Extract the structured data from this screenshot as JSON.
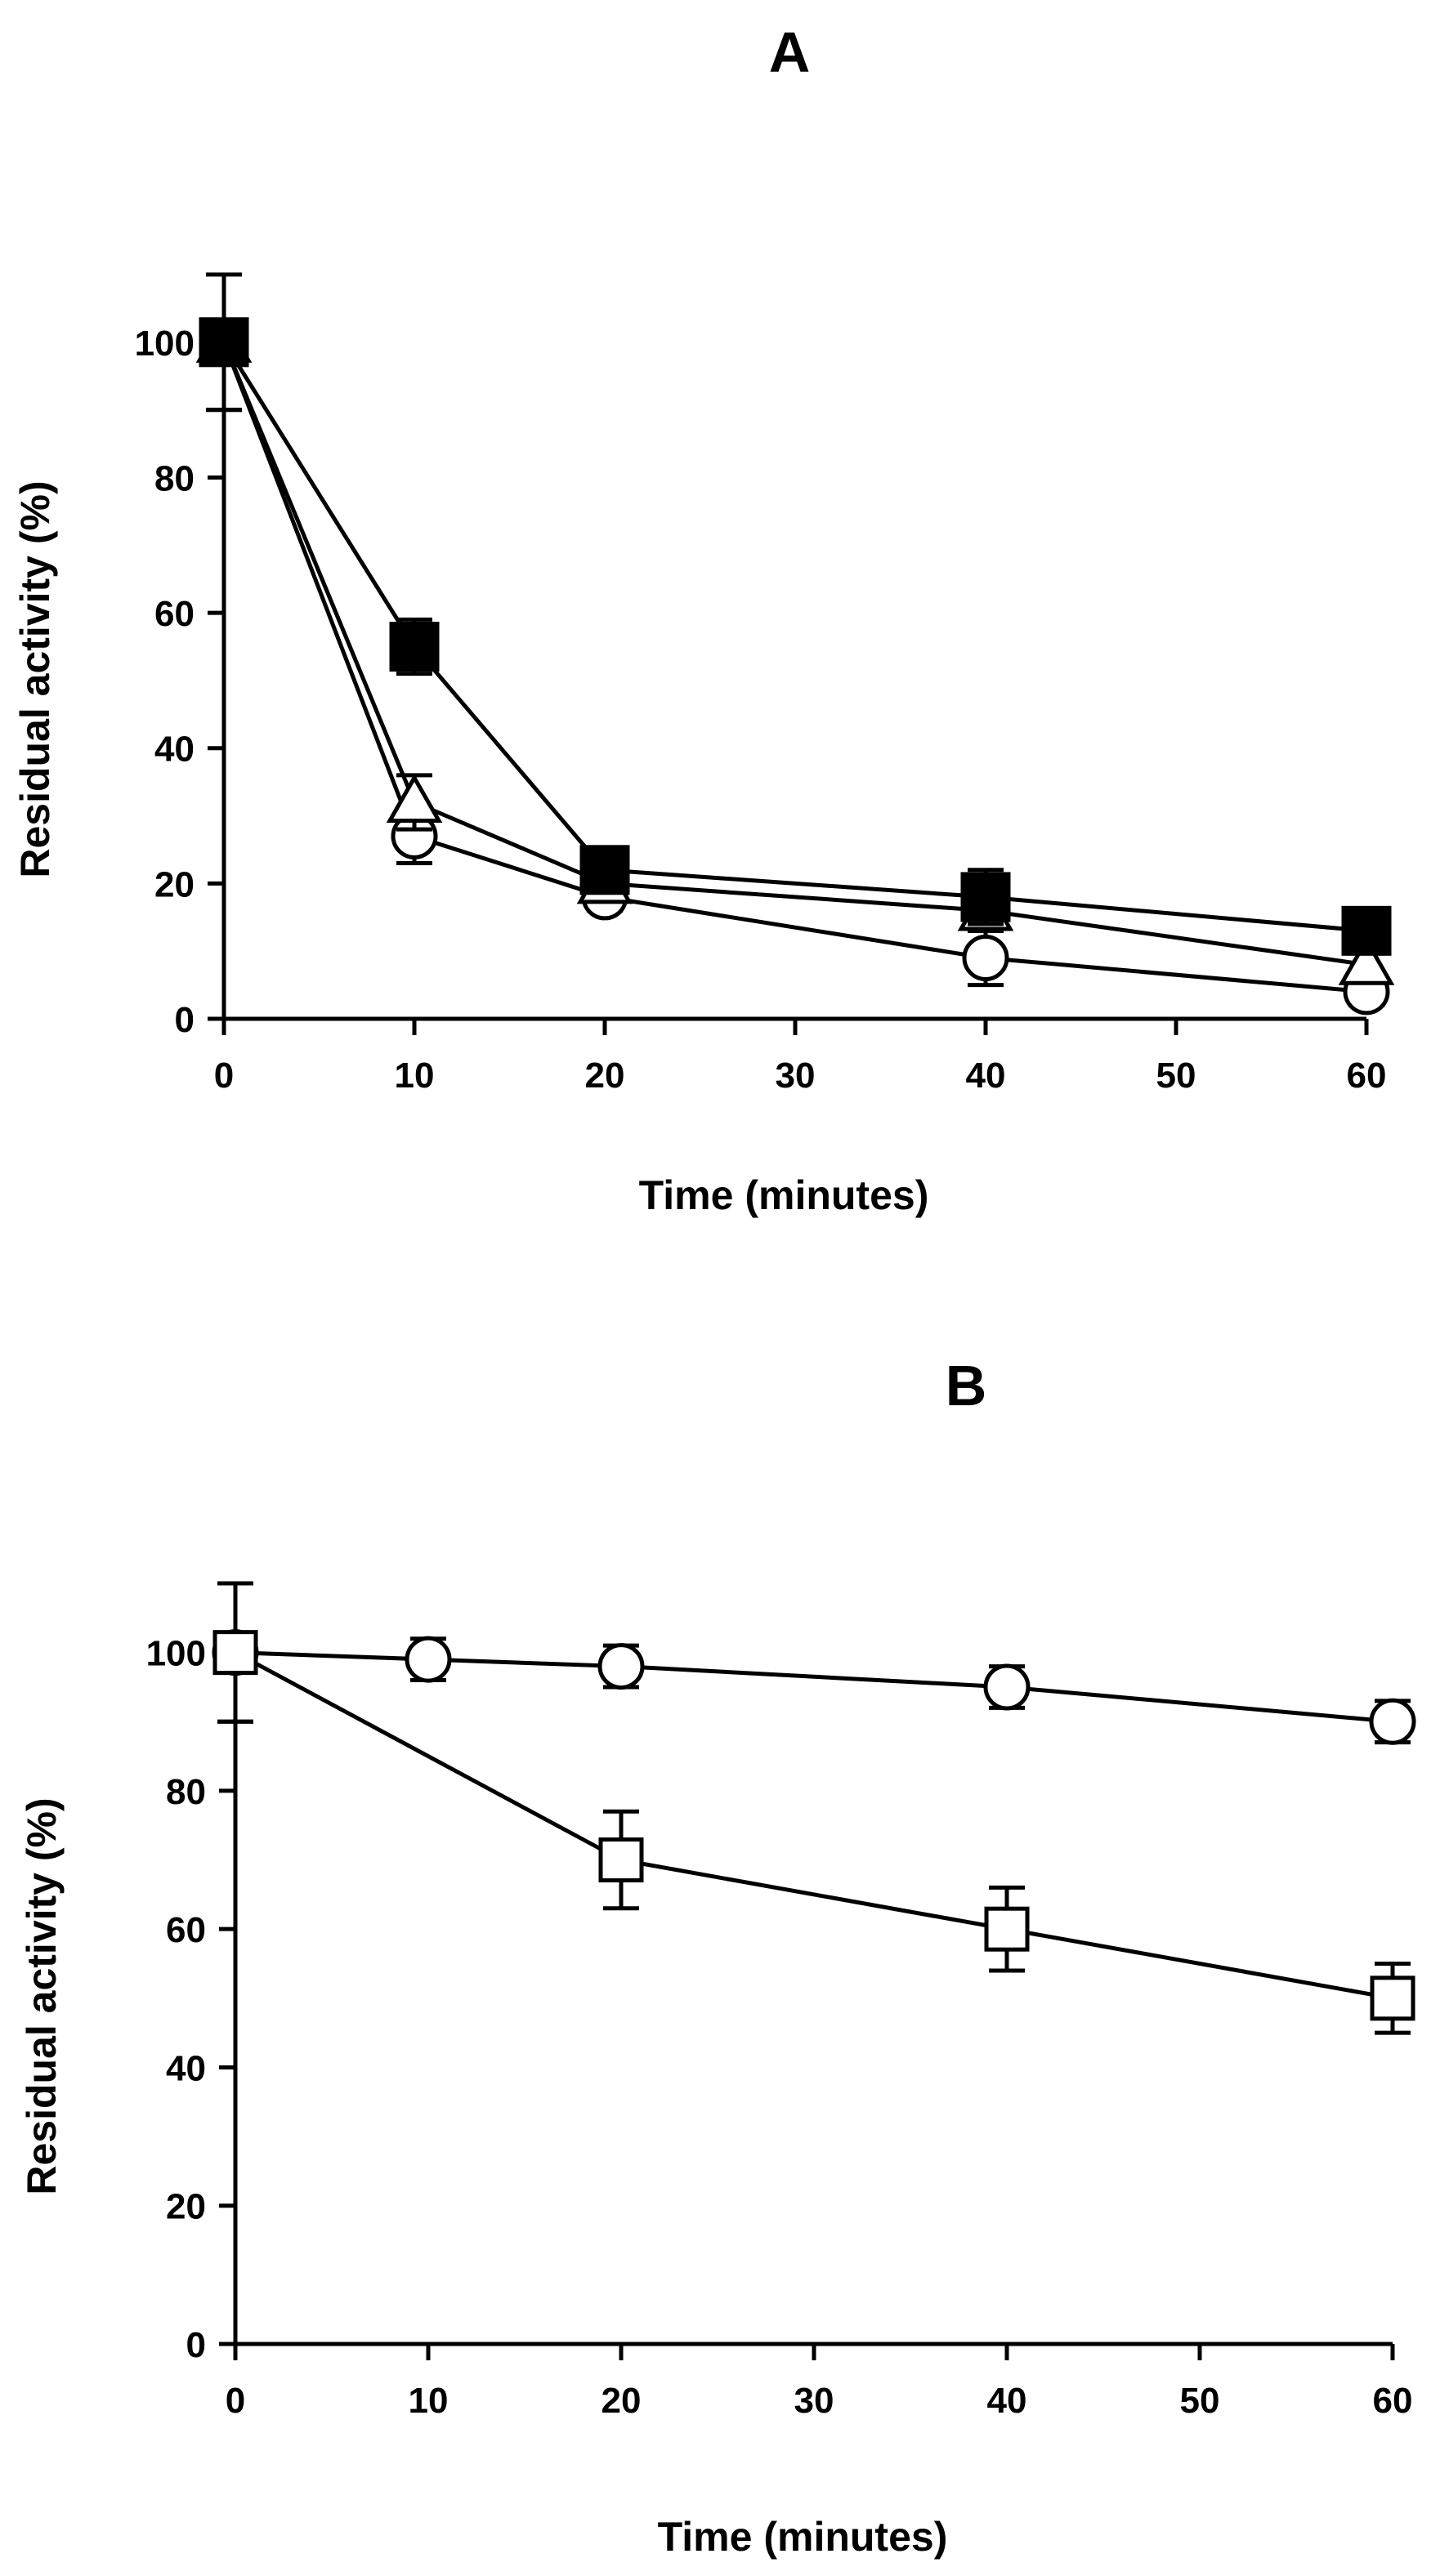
{
  "chart_data": [
    {
      "type": "line",
      "title": "A",
      "xlabel": "Time (minutes)",
      "ylabel": "Residual activity (%)",
      "xlim": [
        0,
        60
      ],
      "ylim": [
        0,
        110
      ],
      "xticks": [
        0,
        10,
        20,
        30,
        40,
        50,
        60
      ],
      "yticks": [
        0,
        20,
        40,
        60,
        80,
        100
      ],
      "xtick_labels": [
        "0",
        "10",
        "20",
        "30",
        "40",
        "50",
        "60"
      ],
      "ytick_labels": [
        "0",
        "20",
        "40",
        "60",
        "80",
        "100"
      ],
      "x": [
        0,
        10,
        20,
        40,
        60
      ],
      "series": [
        {
          "name": "open circle",
          "marker": "circle-open",
          "values": [
            100,
            27,
            18,
            9,
            4
          ],
          "errors": [
            10,
            4,
            2,
            4,
            2
          ]
        },
        {
          "name": "open triangle",
          "marker": "triangle-open",
          "values": [
            100,
            32,
            20,
            16,
            8
          ],
          "errors": [
            10,
            4,
            2,
            3,
            2
          ]
        },
        {
          "name": "filled square",
          "marker": "square-filled",
          "values": [
            100,
            55,
            22,
            18,
            13
          ],
          "errors": [
            10,
            4,
            2,
            4,
            3
          ]
        }
      ]
    },
    {
      "type": "line",
      "title": "B",
      "xlabel": "Time (minutes)",
      "ylabel": "Residual activity (%)",
      "xlim": [
        0,
        60
      ],
      "ylim": [
        0,
        110
      ],
      "xticks": [
        0,
        10,
        20,
        30,
        40,
        50,
        60
      ],
      "yticks": [
        0,
        20,
        40,
        60,
        80,
        100
      ],
      "xtick_labels": [
        "0",
        "10",
        "20",
        "30",
        "40",
        "50",
        "60"
      ],
      "ytick_labels": [
        "0",
        "20",
        "40",
        "60",
        "80",
        "100"
      ],
      "series": [
        {
          "name": "open circle",
          "marker": "circle-open",
          "x": [
            0,
            10,
            20,
            40,
            60
          ],
          "values": [
            100,
            99,
            98,
            95,
            90
          ],
          "errors": [
            10,
            3,
            3,
            3,
            3
          ]
        },
        {
          "name": "open square",
          "marker": "square-open",
          "x": [
            0,
            20,
            40,
            60
          ],
          "values": [
            100,
            70,
            60,
            50
          ],
          "errors": [
            10,
            7,
            6,
            5
          ]
        }
      ]
    }
  ]
}
